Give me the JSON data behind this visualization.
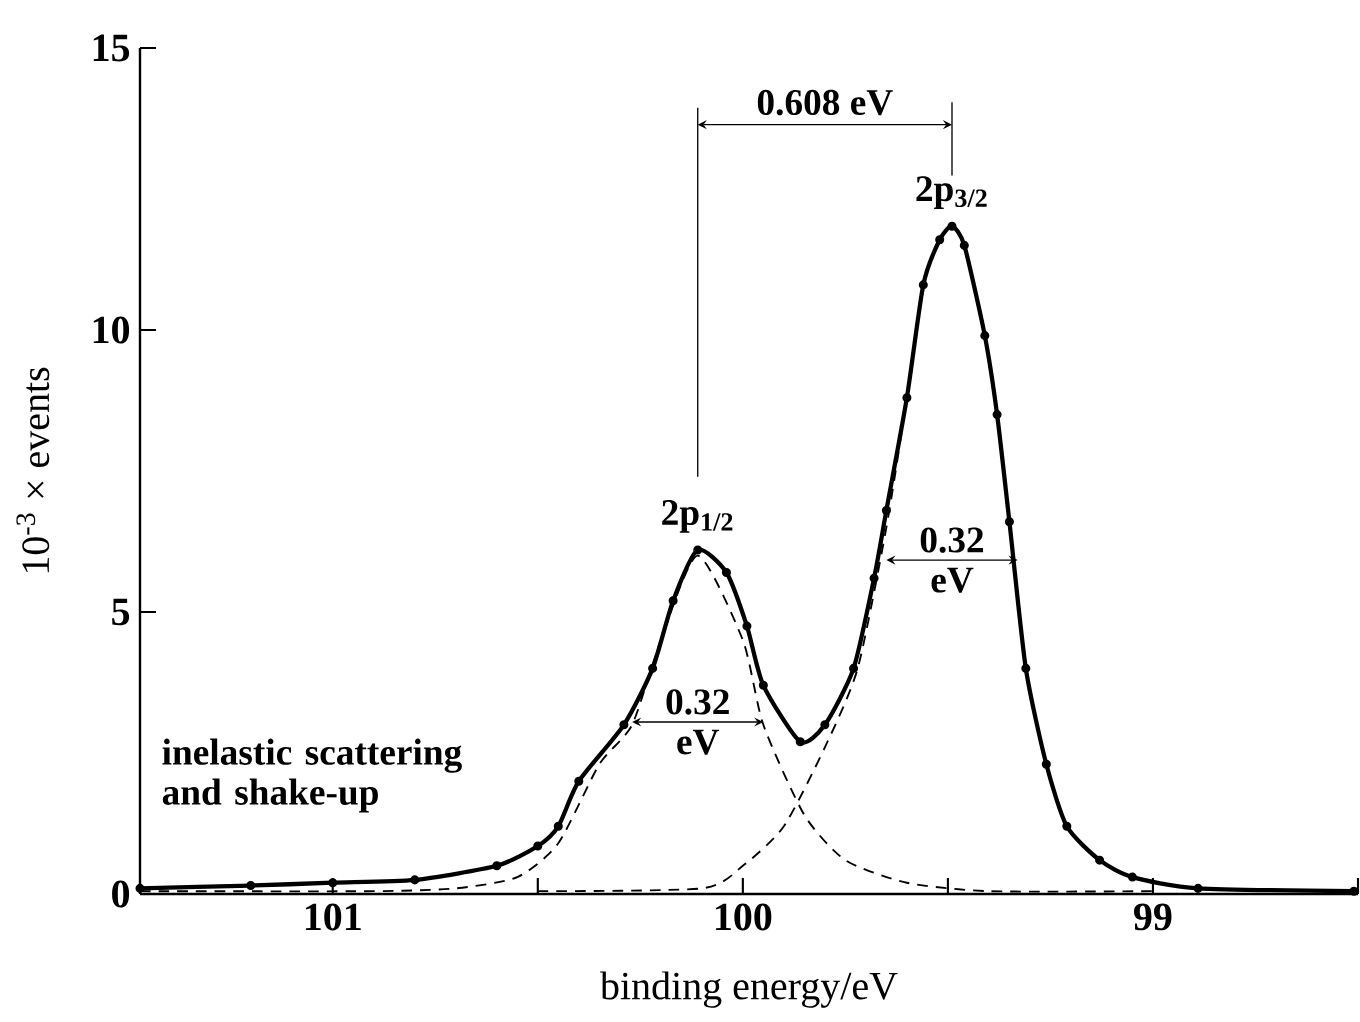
{
  "chart_data": {
    "type": "line",
    "xlabel": "binding energy/eV",
    "ylabel": "10$^{-3}$ × events",
    "xlim": [
      101.47,
      98.5
    ],
    "ylim": [
      0,
      15
    ],
    "xticks": [
      101,
      {
        "value": 100.5,
        "label": null
      },
      100,
      {
        "value": 99.5,
        "label": null
      },
      99,
      {
        "value": 98.5,
        "label": null
      }
    ],
    "yticks": [
      0,
      5,
      10,
      15
    ],
    "series": [
      {
        "color": "#000000",
        "marker": "circle",
        "line_style": "solid",
        "x": [
          101.47,
          101.2,
          101.0,
          100.8,
          100.6,
          100.5,
          100.45,
          100.4,
          100.29,
          100.22,
          100.17,
          100.11,
          100.04,
          99.99,
          99.95,
          99.86,
          99.8,
          99.73,
          99.68,
          99.65,
          99.6,
          99.56,
          99.52,
          99.49,
          99.46,
          99.41,
          99.38,
          99.35,
          99.31,
          99.26,
          99.21,
          99.13,
          99.05,
          98.89,
          98.51
        ],
        "values": [
          0.1,
          0.15,
          0.2,
          0.25,
          0.5,
          0.85,
          1.2,
          2.0,
          3.0,
          4.0,
          5.2,
          6.1,
          5.7,
          4.75,
          3.7,
          2.7,
          3.0,
          4.0,
          5.6,
          6.8,
          8.8,
          10.8,
          11.6,
          11.84,
          11.5,
          9.9,
          8.5,
          6.6,
          4.0,
          2.3,
          1.2,
          0.6,
          0.3,
          0.1,
          0.05
        ]
      },
      {
        "color": "#000000",
        "marker": "none",
        "line_style": "dashed",
        "x": [
          101.47,
          100.9,
          100.7,
          100.55,
          100.45,
          100.35,
          100.27,
          100.2,
          100.11,
          100.0,
          99.95,
          99.85,
          99.75,
          99.6,
          99.4,
          99.0
        ],
        "values": [
          0.05,
          0.05,
          0.1,
          0.3,
          0.9,
          2.3,
          3.0,
          4.5,
          6.0,
          4.5,
          3.0,
          1.4,
          0.6,
          0.2,
          0.05,
          0.05
        ]
      },
      {
        "color": "#000000",
        "marker": "none",
        "line_style": "dashed",
        "x": [
          100.5,
          100.1,
          100.0,
          99.9,
          99.8,
          99.72,
          99.65,
          99.6,
          99.56,
          99.52,
          99.49,
          99.46,
          99.41,
          99.38,
          99.35,
          99.31,
          99.26,
          99.21,
          99.13,
          99.05,
          98.89,
          98.51
        ],
        "values": [
          0.05,
          0.1,
          0.5,
          1.2,
          2.6,
          4.0,
          6.5,
          8.8,
          10.8,
          11.6,
          11.84,
          11.5,
          9.9,
          8.5,
          6.6,
          4.0,
          2.3,
          1.2,
          0.6,
          0.3,
          0.1,
          0.05
        ]
      }
    ],
    "annotations": [
      "0.608 eV",
      {
        "text": "2p$_{1/2}$",
        "x": 100.11,
        "y": 6.1
      },
      {
        "text": "2p$_{3/2}$",
        "x": 99.49,
        "y": 11.84
      },
      "0.32 eV",
      "0.32 eV",
      "inelastic scattering and shake-up"
    ]
  }
}
